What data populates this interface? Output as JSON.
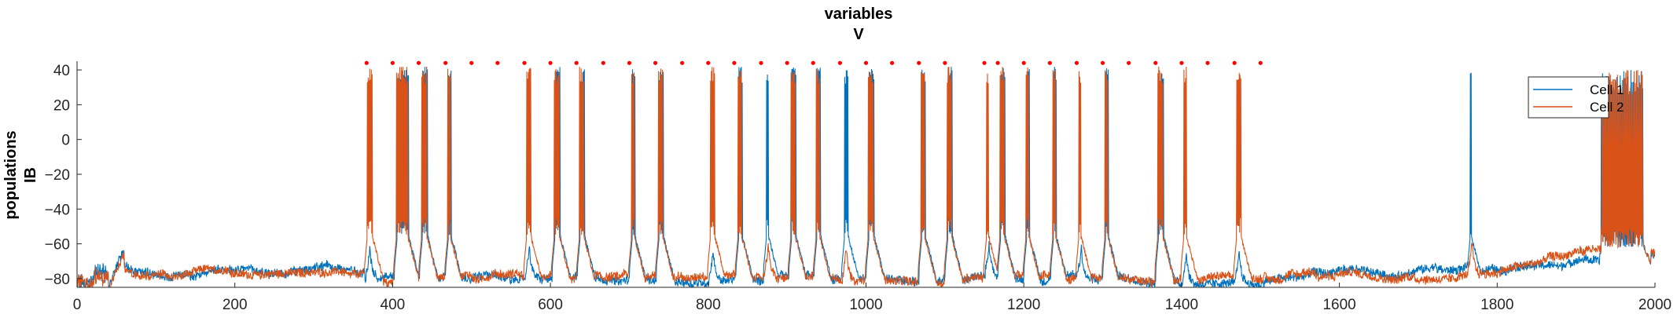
{
  "chart_data": {
    "type": "line",
    "title": "variables",
    "subtitle": "V",
    "ylabel_line1": "populations",
    "ylabel_line2": "IB",
    "xlabel": "",
    "xlim": [
      0,
      2000
    ],
    "ylim": [
      -85,
      45
    ],
    "xticks": [
      0,
      200,
      400,
      600,
      800,
      1000,
      1200,
      1400,
      1600,
      1800,
      2000
    ],
    "xtick_labels": [
      "0",
      "200",
      "400",
      "600",
      "800",
      "1000",
      "1200",
      "1400",
      "1600",
      "1800",
      "2000"
    ],
    "yticks": [
      40,
      20,
      0,
      -20,
      -40,
      -60,
      -80
    ],
    "ytick_labels": [
      "40",
      "20",
      "0",
      "−20",
      "−40",
      "−60",
      "−80"
    ],
    "grid": false,
    "legend_position": "top-right",
    "series": [
      {
        "name": "Cell 1",
        "color": "#0072BD"
      },
      {
        "name": "Cell 2",
        "color": "#D95319"
      }
    ],
    "marker_series": {
      "color": "#FF0000",
      "y": 44,
      "x": [
        367,
        400,
        433,
        467,
        500,
        533,
        567,
        600,
        633,
        667,
        700,
        733,
        767,
        800,
        833,
        867,
        900,
        933,
        967,
        1000,
        1033,
        1067,
        1100,
        1150,
        1167,
        1200,
        1233,
        1267,
        1300,
        1333,
        1367,
        1400,
        1433,
        1467,
        1500
      ]
    },
    "baseline_resting": -75,
    "bursts": [
      {
        "x": 368,
        "cell": "Cell 2",
        "dur": 6
      },
      {
        "x": 405,
        "cell": "both",
        "dur": 14
      },
      {
        "x": 437,
        "cell": "both",
        "dur": 6
      },
      {
        "x": 470,
        "cell": "both",
        "dur": 3
      },
      {
        "x": 570,
        "cell": "Cell 2",
        "dur": 5
      },
      {
        "x": 605,
        "cell": "both",
        "dur": 6
      },
      {
        "x": 637,
        "cell": "both",
        "dur": 5
      },
      {
        "x": 703,
        "cell": "both",
        "dur": 3
      },
      {
        "x": 737,
        "cell": "both",
        "dur": 5
      },
      {
        "x": 803,
        "cell": "Cell 2",
        "dur": 5
      },
      {
        "x": 838,
        "cell": "both",
        "dur": 4
      },
      {
        "x": 873,
        "cell": "Cell 1",
        "dur": 2
      },
      {
        "x": 905,
        "cell": "both",
        "dur": 5
      },
      {
        "x": 937,
        "cell": "both",
        "dur": 4
      },
      {
        "x": 972,
        "cell": "Cell 1",
        "dur": 4
      },
      {
        "x": 1003,
        "cell": "both",
        "dur": 6
      },
      {
        "x": 1070,
        "cell": "both",
        "dur": 4
      },
      {
        "x": 1103,
        "cell": "both",
        "dur": 5
      },
      {
        "x": 1153,
        "cell": "Cell 2",
        "dur": 2
      },
      {
        "x": 1170,
        "cell": "both",
        "dur": 5
      },
      {
        "x": 1203,
        "cell": "both",
        "dur": 3
      },
      {
        "x": 1237,
        "cell": "both",
        "dur": 3
      },
      {
        "x": 1270,
        "cell": "Cell 2",
        "dur": 2
      },
      {
        "x": 1303,
        "cell": "both",
        "dur": 3
      },
      {
        "x": 1370,
        "cell": "both",
        "dur": 6
      },
      {
        "x": 1403,
        "cell": "Cell 2",
        "dur": 3
      },
      {
        "x": 1470,
        "cell": "Cell 2",
        "dur": 5
      },
      {
        "x": 1765,
        "cell": "Cell 1",
        "dur": 1
      }
    ],
    "final_burst_region": {
      "x_start": 1932,
      "x_end": 1985
    }
  }
}
